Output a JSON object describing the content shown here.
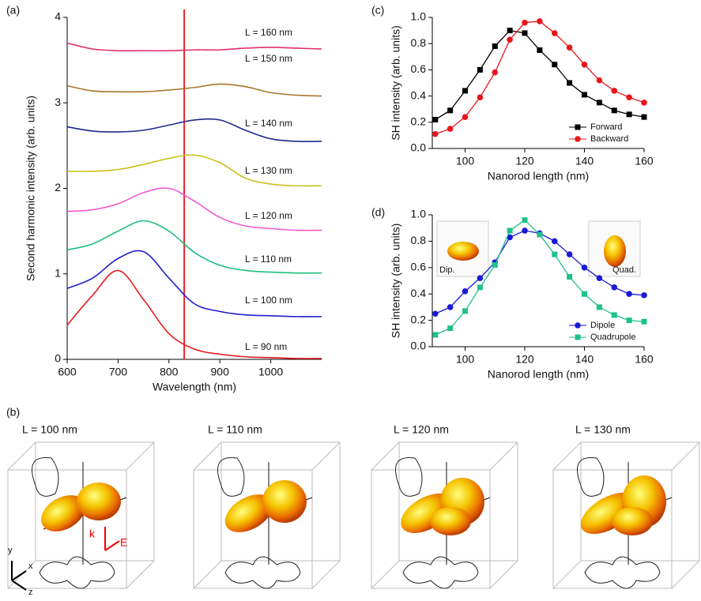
{
  "chart_data": [
    {
      "type": "line",
      "panel_label": "(a)",
      "xlabel": "Wavelength (nm)",
      "ylabel": "Second harmonic intensity (arb. units)",
      "xlim": [
        600,
        1100
      ],
      "xticks": [
        600,
        700,
        800,
        900,
        1000
      ],
      "ylim": [
        0,
        4
      ],
      "yticks": [
        0,
        1,
        2,
        3,
        4
      ],
      "vline_x": 830,
      "vline_color": "#e8232b",
      "markers": false,
      "x": [
        600,
        650,
        700,
        750,
        800,
        850,
        900,
        950,
        1000,
        1050,
        1100
      ],
      "series": [
        {
          "name": "L = 90 nm",
          "color": "#e41a1c",
          "values": [
            0.4,
            0.75,
            1.04,
            0.7,
            0.3,
            0.12,
            0.06,
            0.03,
            0.02,
            0.01,
            0.01
          ]
        },
        {
          "name": "L = 100 nm",
          "color": "#1f1fc8",
          "values": [
            0.83,
            0.95,
            1.18,
            1.26,
            0.95,
            0.65,
            0.56,
            0.52,
            0.51,
            0.5,
            0.5
          ]
        },
        {
          "name": "L = 110 nm",
          "color": "#1bbf7a",
          "values": [
            1.28,
            1.35,
            1.5,
            1.62,
            1.5,
            1.25,
            1.1,
            1.04,
            1.02,
            1.01,
            1.01
          ]
        },
        {
          "name": "L = 120 nm",
          "color": "#f25ad0",
          "values": [
            1.73,
            1.75,
            1.82,
            1.95,
            2.0,
            1.85,
            1.66,
            1.56,
            1.53,
            1.51,
            1.51
          ]
        },
        {
          "name": "L = 130 nm",
          "color": "#c9c21a",
          "values": [
            2.2,
            2.2,
            2.22,
            2.28,
            2.35,
            2.39,
            2.3,
            2.12,
            2.05,
            2.03,
            2.03
          ]
        },
        {
          "name": "L = 140 nm",
          "color": "#1e2a8c",
          "values": [
            2.72,
            2.67,
            2.66,
            2.68,
            2.74,
            2.8,
            2.8,
            2.68,
            2.58,
            2.55,
            2.55
          ]
        },
        {
          "name": "L = 150 nm",
          "color": "#a8762a",
          "values": [
            3.2,
            3.14,
            3.13,
            3.13,
            3.15,
            3.18,
            3.22,
            3.19,
            3.12,
            3.09,
            3.08
          ]
        },
        {
          "name": "L = 160 nm",
          "color": "#e0306a",
          "values": [
            3.7,
            3.63,
            3.61,
            3.61,
            3.61,
            3.62,
            3.62,
            3.64,
            3.65,
            3.64,
            3.63
          ]
        }
      ]
    },
    {
      "type": "line",
      "panel_label": "(c)",
      "xlabel": "Nanorod length (nm)",
      "ylabel": "SH intensity (arb. units)",
      "xlim": [
        89,
        160
      ],
      "xticks": [
        100,
        120,
        140,
        160
      ],
      "ylim": [
        0,
        1
      ],
      "yticks": [
        {
          "value": 0,
          "label": "0.0"
        },
        0.2,
        0.4,
        0.6,
        0.8,
        {
          "value": 1,
          "label": "1.0"
        }
      ],
      "legend": "lower right",
      "markers": true,
      "x": [
        90,
        95,
        100,
        105,
        110,
        115,
        120,
        125,
        130,
        135,
        140,
        145,
        150,
        155,
        160
      ],
      "series": [
        {
          "name": "Forward",
          "color": "#000000",
          "marker": "square",
          "values": [
            0.22,
            0.29,
            0.44,
            0.6,
            0.78,
            0.9,
            0.88,
            0.75,
            0.64,
            0.5,
            0.41,
            0.35,
            0.29,
            0.26,
            0.24
          ]
        },
        {
          "name": "Backward",
          "color": "#e8161b",
          "marker": "circle",
          "values": [
            0.11,
            0.15,
            0.24,
            0.39,
            0.58,
            0.83,
            0.96,
            0.97,
            0.88,
            0.77,
            0.64,
            0.52,
            0.44,
            0.39,
            0.35
          ]
        }
      ]
    },
    {
      "type": "line",
      "panel_label": "(d)",
      "xlabel": "Nanorod length (nm)",
      "ylabel": "SH intensity (arb. units)",
      "xlim": [
        89,
        160
      ],
      "xticks": [
        100,
        120,
        140,
        160
      ],
      "ylim": [
        0,
        1
      ],
      "yticks": [
        {
          "value": 0,
          "label": "0.0"
        },
        0.2,
        0.4,
        0.6,
        0.8,
        {
          "value": 1,
          "label": "1.0"
        }
      ],
      "legend": "lower right",
      "markers": true,
      "inset_labels": [
        "Dip.",
        "Quad."
      ],
      "x": [
        90,
        95,
        100,
        105,
        110,
        115,
        120,
        125,
        130,
        135,
        140,
        145,
        150,
        155,
        160
      ],
      "series": [
        {
          "name": "Dipole",
          "color": "#1a1ad6",
          "marker": "circle",
          "values": [
            0.25,
            0.3,
            0.42,
            0.52,
            0.64,
            0.83,
            0.88,
            0.86,
            0.8,
            0.7,
            0.6,
            0.52,
            0.45,
            0.4,
            0.39
          ]
        },
        {
          "name": "Quadrupole",
          "color": "#1fc08a",
          "marker": "square",
          "values": [
            0.09,
            0.14,
            0.27,
            0.45,
            0.62,
            0.88,
            0.96,
            0.85,
            0.7,
            0.53,
            0.4,
            0.3,
            0.24,
            0.2,
            0.19
          ]
        }
      ]
    }
  ],
  "renderings": {
    "panel_label": "(b)",
    "labels": [
      "L = 100 nm",
      "L = 110 nm",
      "L = 120 nm",
      "L = 130 nm"
    ],
    "axes": [
      "y",
      "x",
      "z"
    ],
    "vectors": [
      "k",
      "E"
    ]
  }
}
